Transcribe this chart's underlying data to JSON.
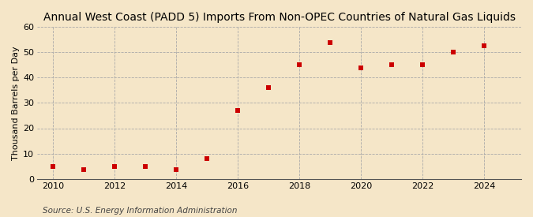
{
  "title": "Annual West Coast (PADD 5) Imports From Non-OPEC Countries of Natural Gas Liquids",
  "ylabel": "Thousand Barrels per Day",
  "source": "Source: U.S. Energy Information Administration",
  "background_color": "#f5e6c8",
  "years": [
    2010,
    2011,
    2012,
    2013,
    2014,
    2015,
    2016,
    2017,
    2018,
    2019,
    2020,
    2021,
    2022,
    2023,
    2024
  ],
  "values": [
    5.0,
    3.5,
    5.0,
    5.0,
    3.5,
    8.0,
    27.0,
    36.0,
    45.0,
    54.0,
    44.0,
    45.0,
    45.0,
    50.0,
    52.5
  ],
  "marker_color": "#cc0000",
  "marker_size": 4.5,
  "xlim": [
    2009.5,
    2025.2
  ],
  "ylim": [
    0,
    60
  ],
  "yticks": [
    0,
    10,
    20,
    30,
    40,
    50,
    60
  ],
  "xticks": [
    2010,
    2012,
    2014,
    2016,
    2018,
    2020,
    2022,
    2024
  ],
  "title_fontsize": 10,
  "label_fontsize": 8,
  "tick_fontsize": 8,
  "source_fontsize": 7.5
}
